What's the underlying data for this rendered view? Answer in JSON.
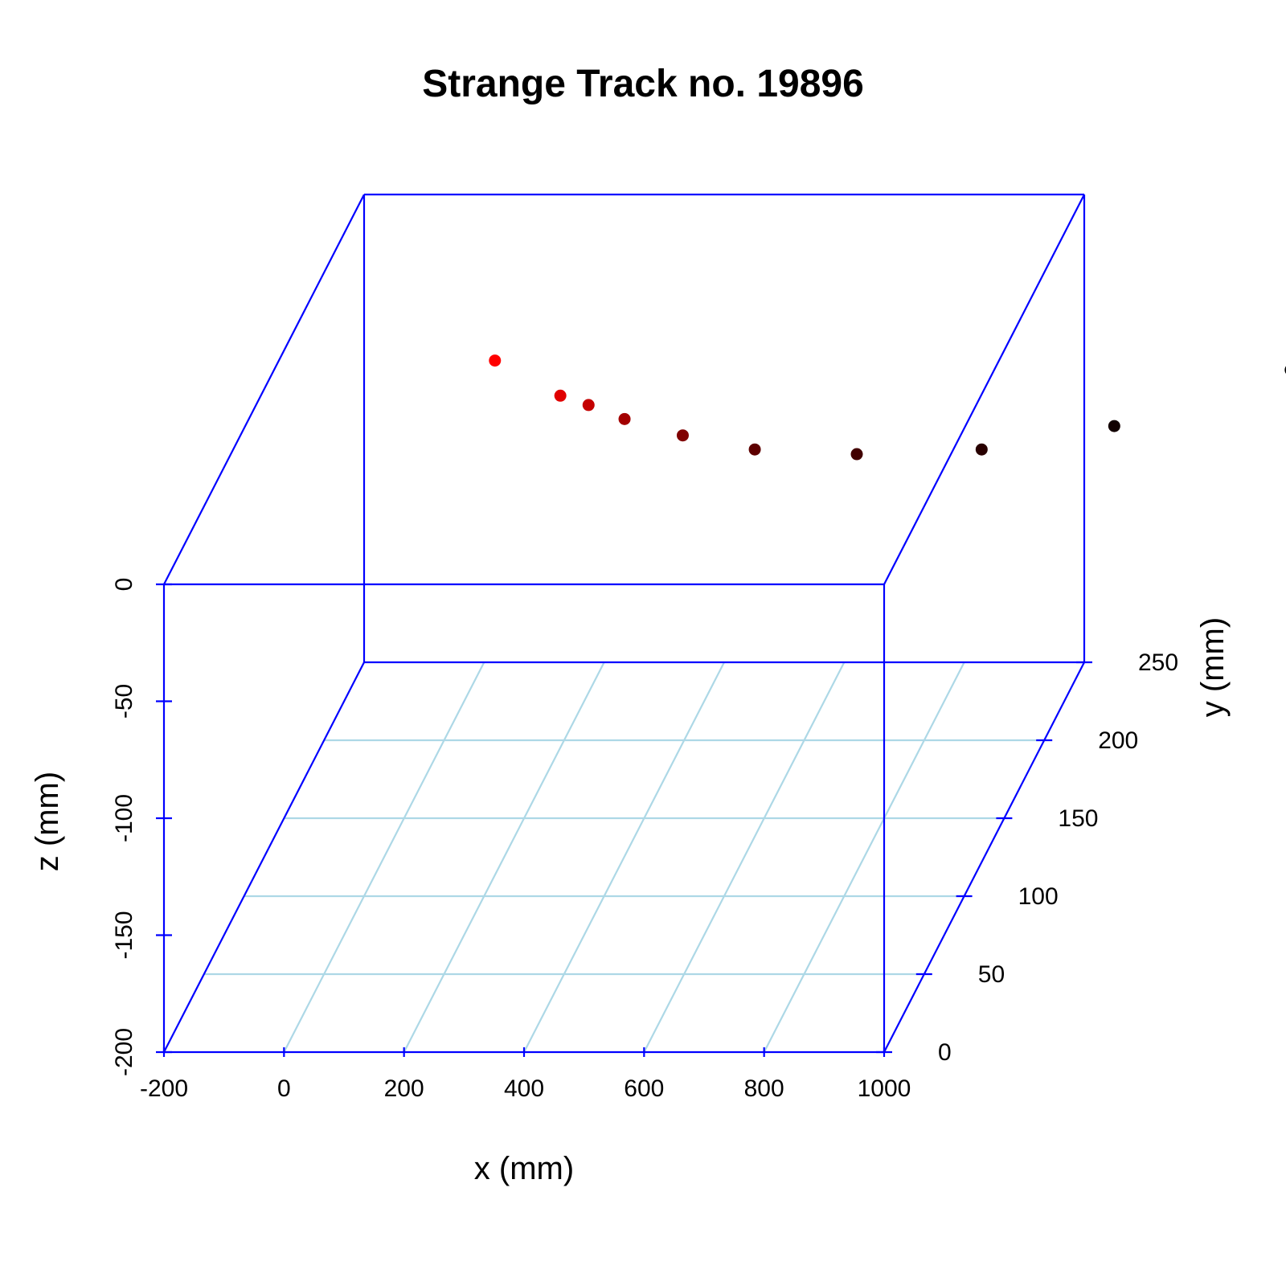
{
  "chart_data": {
    "type": "scatter3d",
    "title": "Strange Track no. 19896",
    "xlabel": "x (mm)",
    "ylabel": "y (mm)",
    "zlabel": "z (mm)",
    "xlim": [
      -200,
      1000
    ],
    "ylim": [
      0,
      250
    ],
    "zlim": [
      -200,
      0
    ],
    "xticks": [
      -200,
      0,
      200,
      400,
      600,
      800,
      1000
    ],
    "yticks": [
      0,
      50,
      100,
      150,
      200,
      250
    ],
    "zticks": [
      -200,
      -150,
      -100,
      -50,
      0
    ],
    "grid": true,
    "colors": {
      "box": "#0000ff",
      "grid": "#add8e6"
    },
    "points": [
      {
        "x": 18,
        "y": 250,
        "z": -71,
        "color": "#ff0000"
      },
      {
        "x": 127,
        "y": 250,
        "z": -86,
        "color": "#e00000"
      },
      {
        "x": 174,
        "y": 250,
        "z": -90,
        "color": "#c40000"
      },
      {
        "x": 234,
        "y": 250,
        "z": -96,
        "color": "#a30000"
      },
      {
        "x": 331,
        "y": 250,
        "z": -103,
        "color": "#800000"
      },
      {
        "x": 451,
        "y": 250,
        "z": -109,
        "color": "#5e0000"
      },
      {
        "x": 621,
        "y": 250,
        "z": -111,
        "color": "#420000"
      },
      {
        "x": 829,
        "y": 250,
        "z": -109,
        "color": "#280000"
      },
      {
        "x": 1050,
        "y": 250,
        "z": -99,
        "color": "#120000"
      },
      {
        "x": 1344,
        "y": 250,
        "z": -75,
        "color": "#000000"
      }
    ]
  }
}
